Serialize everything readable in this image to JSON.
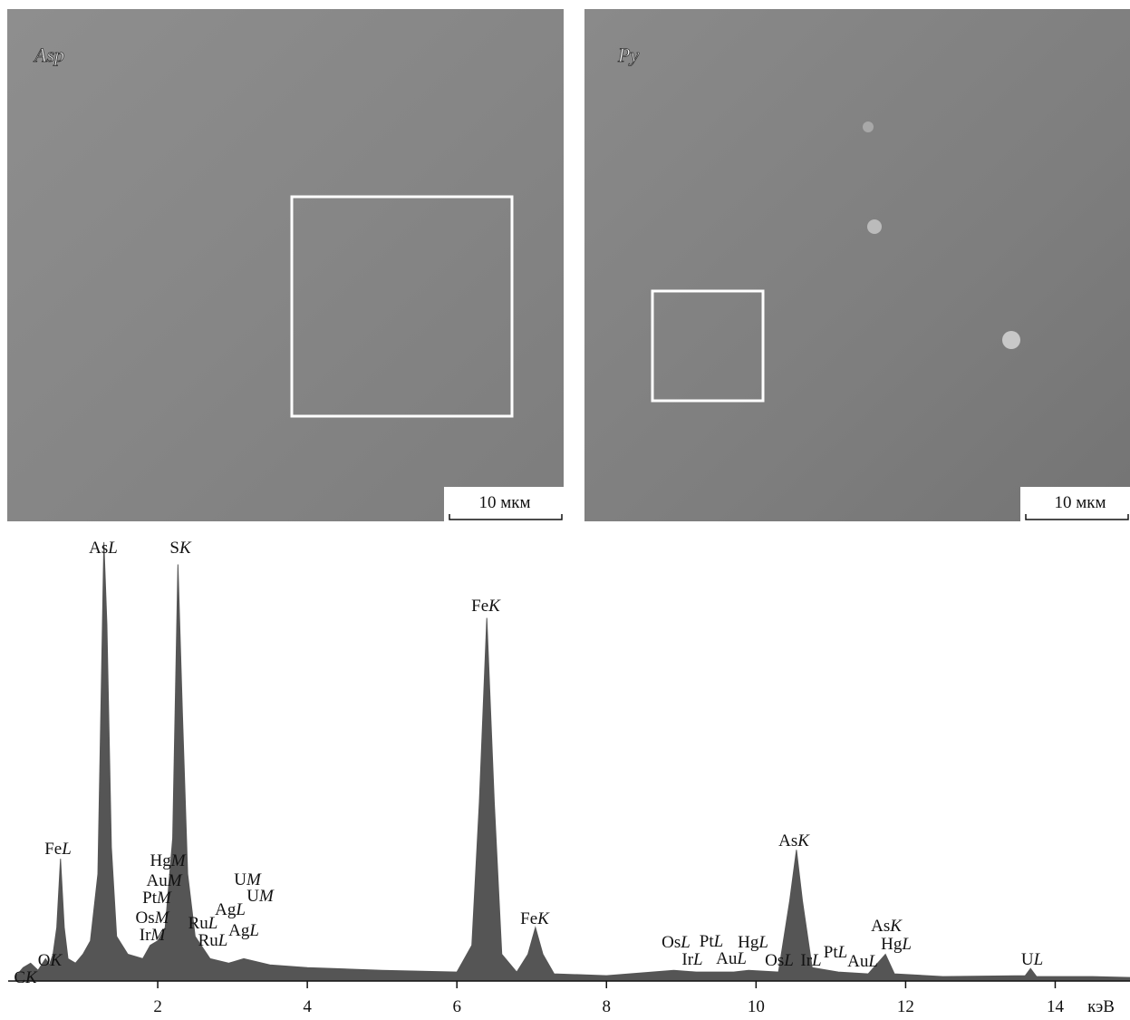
{
  "images": [
    {
      "label": "Asp",
      "scale_bar": "10 мкм"
    },
    {
      "label": "Py",
      "scale_bar": "10 мкм"
    }
  ],
  "chart_data": {
    "type": "area",
    "color": "#555555",
    "x": [
      0.1,
      0.2,
      0.3,
      0.4,
      0.5,
      0.55,
      0.6,
      0.65,
      0.7,
      0.75,
      0.8,
      0.9,
      1.0,
      1.1,
      1.2,
      1.25,
      1.28,
      1.32,
      1.38,
      1.45,
      1.6,
      1.8,
      1.9,
      2.0,
      2.1,
      2.2,
      2.27,
      2.33,
      2.4,
      2.5,
      2.7,
      2.95,
      3.15,
      3.5,
      4.0,
      5.0,
      6.0,
      6.2,
      6.3,
      6.4,
      6.5,
      6.6,
      6.8,
      6.95,
      7.05,
      7.15,
      7.3,
      8.0,
      8.9,
      9.2,
      9.4,
      9.7,
      9.9,
      10.3,
      10.45,
      10.54,
      10.62,
      10.75,
      11.1,
      11.5,
      11.73,
      11.85,
      12.5,
      13.6,
      13.67,
      13.75,
      14.5,
      15.0
    ],
    "values": [
      5,
      15,
      20,
      12,
      25,
      18,
      30,
      60,
      137,
      60,
      25,
      20,
      30,
      45,
      120,
      350,
      492,
      400,
      150,
      50,
      30,
      25,
      40,
      45,
      60,
      160,
      467,
      300,
      120,
      50,
      25,
      20,
      25,
      18,
      15,
      12,
      10,
      40,
      200,
      407,
      200,
      30,
      10,
      30,
      60,
      30,
      8,
      6,
      12,
      10,
      10,
      10,
      12,
      10,
      90,
      147,
      90,
      15,
      10,
      8,
      30,
      8,
      5,
      6,
      14,
      5,
      5,
      4
    ],
    "xlim": [
      0,
      15
    ],
    "ylim": [
      0,
      500
    ],
    "xticks": [
      2,
      4,
      6,
      8,
      10,
      12,
      14
    ],
    "x_unit": "кэВ",
    "peak_labels": [
      {
        "element": "C",
        "line": "K"
      },
      {
        "element": "O",
        "line": "K"
      },
      {
        "element": "Fe",
        "line": "L"
      },
      {
        "element": "As",
        "line": "L"
      },
      {
        "element": "S",
        "line": "K"
      },
      {
        "element": "Hg",
        "line": "M"
      },
      {
        "element": "Au",
        "line": "M"
      },
      {
        "element": "Pt",
        "line": "M"
      },
      {
        "element": "Os",
        "line": "M"
      },
      {
        "element": "Ir",
        "line": "M"
      },
      {
        "element": "Ru",
        "line": "L"
      },
      {
        "element": "Ru",
        "line": "L"
      },
      {
        "element": "Ag",
        "line": "L"
      },
      {
        "element": "Ag",
        "line": "L"
      },
      {
        "element": "U",
        "line": "M"
      },
      {
        "element": "U",
        "line": "M"
      },
      {
        "element": "Fe",
        "line": "K"
      },
      {
        "element": "Fe",
        "line": "K"
      },
      {
        "element": "Os",
        "line": "L"
      },
      {
        "element": "Ir",
        "line": "L"
      },
      {
        "element": "Pt",
        "line": "L"
      },
      {
        "element": "Au",
        "line": "L"
      },
      {
        "element": "Hg",
        "line": "L"
      },
      {
        "element": "Os",
        "line": "L"
      },
      {
        "element": "Ir",
        "line": "L"
      },
      {
        "element": "Pt",
        "line": "L"
      },
      {
        "element": "Au",
        "line": "L"
      },
      {
        "element": "As",
        "line": "K"
      },
      {
        "element": "As",
        "line": "K"
      },
      {
        "element": "Hg",
        "line": "L"
      },
      {
        "element": "U",
        "line": "L"
      }
    ]
  }
}
